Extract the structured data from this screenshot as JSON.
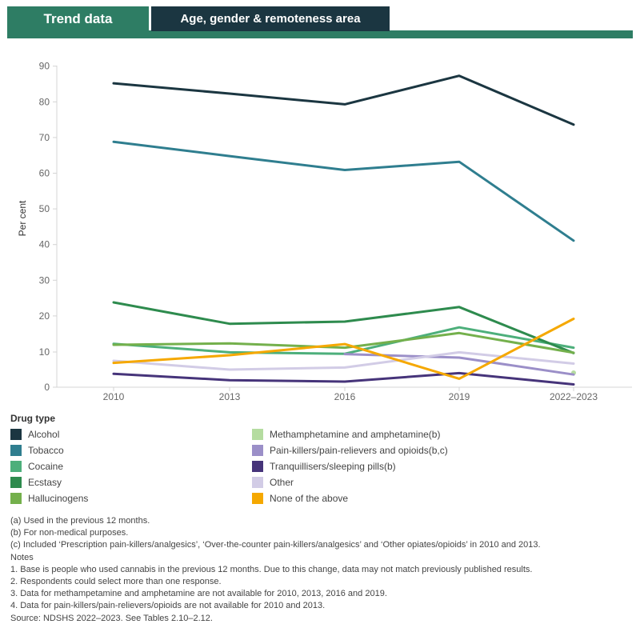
{
  "tabs": [
    {
      "label": "Trend data"
    },
    {
      "label": "Age, gender & remoteness area"
    }
  ],
  "chart_data": {
    "type": "line",
    "title": "",
    "xlabel": "",
    "ylabel": "Per cent",
    "categories": [
      "2010",
      "2013",
      "2016",
      "2019",
      "2022–2023"
    ],
    "yticks": [
      0,
      10,
      20,
      30,
      40,
      50,
      60,
      70,
      80,
      90
    ],
    "ylim": [
      0,
      90
    ],
    "grid": false,
    "legend_position": "bottom",
    "series": [
      {
        "name": "Alcohol",
        "color": "#1b3641",
        "values": [
          85.2,
          82.3,
          79.3,
          87.3,
          73.6
        ]
      },
      {
        "name": "Tobacco",
        "color": "#2f7e8f",
        "values": [
          68.8,
          64.8,
          60.9,
          63.2,
          41.1
        ]
      },
      {
        "name": "Cocaine",
        "color": "#4daf7b",
        "values": [
          12.2,
          9.9,
          9.5,
          16.8,
          11.1
        ]
      },
      {
        "name": "Ecstasy",
        "color": "#2e8b4e",
        "values": [
          23.8,
          17.8,
          18.4,
          22.5,
          9.7
        ]
      },
      {
        "name": "Hallucinogens",
        "color": "#74b04c",
        "values": [
          11.9,
          12.3,
          11.1,
          15.2,
          9.8
        ]
      },
      {
        "name": "Methamphetamine and amphetamine(b)",
        "color": "#b5dca0",
        "values": [
          null,
          null,
          null,
          null,
          4.1
        ]
      },
      {
        "name": "Pain-killers/pain-relievers and opioids(b,c)",
        "color": "#9b8fc8",
        "values": [
          null,
          null,
          9.4,
          8.4,
          3.6
        ]
      },
      {
        "name": "Tranquillisers/sleeping pills(b)",
        "color": "#46347a",
        "values": [
          3.8,
          2.0,
          1.6,
          4.0,
          0.8
        ]
      },
      {
        "name": "Other",
        "color": "#d2cce6",
        "values": [
          7.5,
          5.0,
          5.6,
          9.9,
          6.7
        ]
      },
      {
        "name": "None of the above",
        "color": "#f5a800",
        "values": [
          6.9,
          9.1,
          12.1,
          2.4,
          19.2
        ]
      }
    ]
  },
  "legend": {
    "title": "Drug type",
    "items": [
      "Alcohol",
      "Tobacco",
      "Cocaine",
      "Ecstasy",
      "Hallucinogens",
      "Methamphetamine and amphetamine(b)",
      "Pain-killers/pain-relievers and opioids(b,c)",
      "Tranquillisers/sleeping pills(b)",
      "Other",
      "None of the above"
    ]
  },
  "notes": [
    "(a) Used in the previous 12 months.",
    "(b) For non-medical purposes.",
    "(c) Included ‘Prescription pain-killers/analgesics’, ‘Over-the-counter pain-killers/analgesics’ and ‘Other opiates/opioids’ in 2010 and 2013.",
    "Notes",
    "1. Base is people who used cannabis in the previous 12 months. Due to this change, data may not match previously published results.",
    "2. Respondents could select more than one response.",
    "3. Data for methampetamine and amphetamine are not available for 2010, 2013, 2016 and 2019.",
    "4. Data for pain-killers/pain-relievers/opioids are not available for 2010 and 2013.",
    "Source: NDSHS 2022–2023. See Tables 2.10–2.12."
  ]
}
